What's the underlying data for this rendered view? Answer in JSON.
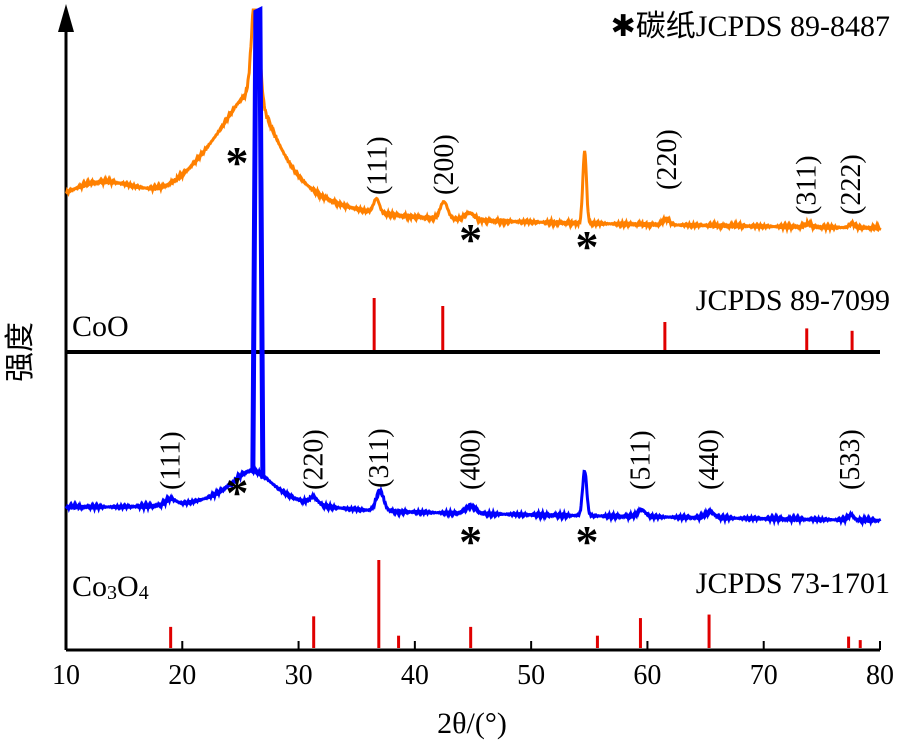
{
  "chart_data": {
    "type": "line",
    "xlabel": "2θ/(°)",
    "ylabel": "强度",
    "xlim": [
      10,
      80
    ],
    "x_ticks": [
      "10",
      "20",
      "30",
      "40",
      "50",
      "60",
      "70",
      "80"
    ],
    "legend": "✱碳纸JCPDS 89-8487",
    "legend_position": "top-right",
    "panels": [
      {
        "name": "CoO",
        "reference": "JCPDS 89-7099",
        "series_color": "#FF8000",
        "reference_color": "#E00000",
        "reflections": [
          "(111)",
          "(200)",
          "(220)",
          "(311)",
          "(222)"
        ],
        "reflection_positions": [
          36.8,
          42.5,
          61.7,
          73.7,
          77.5
        ],
        "reference_lines": [
          {
            "x": 36.5,
            "rel_intensity": 0.65
          },
          {
            "x": 42.4,
            "rel_intensity": 0.55
          },
          {
            "x": 61.5,
            "rel_intensity": 0.35
          },
          {
            "x": 73.7,
            "rel_intensity": 0.27
          },
          {
            "x": 77.6,
            "rel_intensity": 0.24
          }
        ],
        "carbon_paper_peaks": [
          26.5,
          44.8,
          54.6
        ]
      },
      {
        "name": "Co3O4",
        "reference": "JCPDS 73-1701",
        "series_color": "#0000FF",
        "reference_color": "#E00000",
        "reflections": [
          "(111)",
          "(220)",
          "(311)",
          "(400)",
          "(511)",
          "(440)",
          "(533)"
        ],
        "reflection_positions": [
          19.0,
          31.3,
          36.9,
          44.8,
          59.4,
          65.3,
          77.4
        ],
        "reference_lines": [
          {
            "x": 19.0,
            "rel_intensity": 0.24
          },
          {
            "x": 31.3,
            "rel_intensity": 0.36
          },
          {
            "x": 36.9,
            "rel_intensity": 1.0
          },
          {
            "x": 38.6,
            "rel_intensity": 0.14
          },
          {
            "x": 44.8,
            "rel_intensity": 0.24
          },
          {
            "x": 55.7,
            "rel_intensity": 0.14
          },
          {
            "x": 59.4,
            "rel_intensity": 0.34
          },
          {
            "x": 65.3,
            "rel_intensity": 0.38
          },
          {
            "x": 77.3,
            "rel_intensity": 0.13
          },
          {
            "x": 78.3,
            "rel_intensity": 0.09
          }
        ],
        "carbon_paper_peaks": [
          26.5,
          44.8,
          54.6
        ]
      }
    ]
  }
}
